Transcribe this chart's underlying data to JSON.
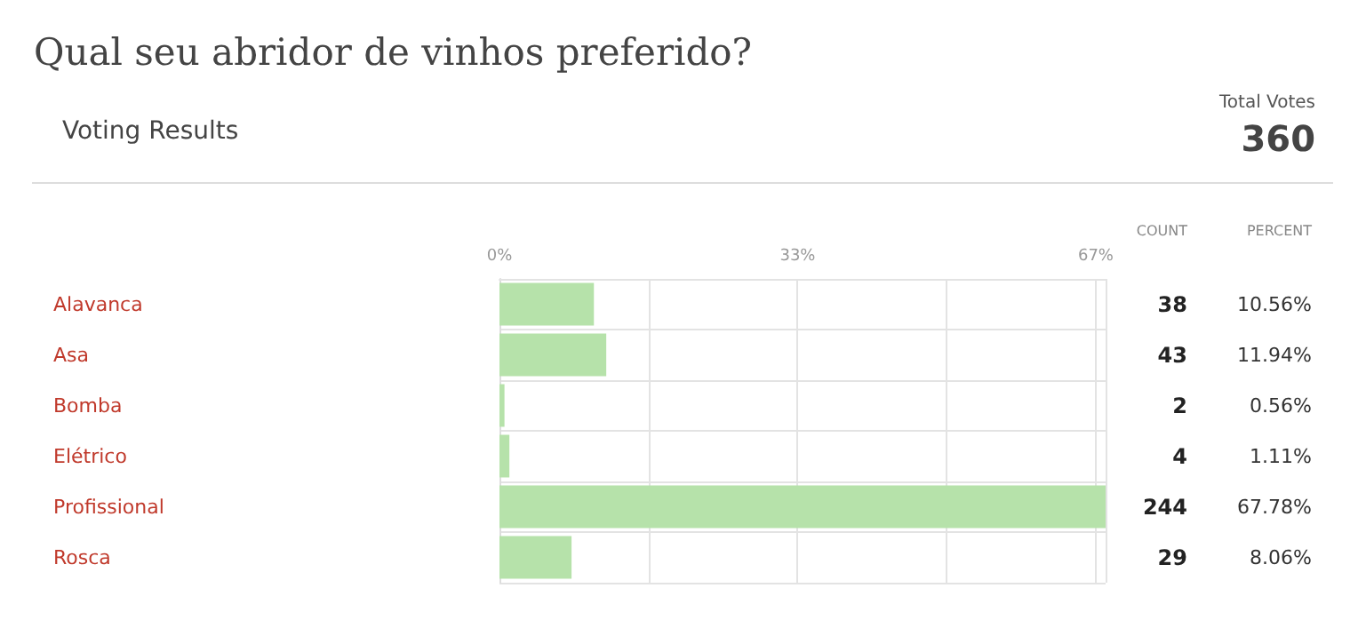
{
  "chart_data": {
    "type": "bar",
    "orientation": "horizontal",
    "title": "Qual seu abridor de vinhos preferido?",
    "subtitle": "Voting Results",
    "categories": [
      "Alavanca",
      "Asa",
      "Bomba",
      "Elétrico",
      "Profissional",
      "Rosca"
    ],
    "values": [
      10.56,
      11.94,
      0.56,
      1.11,
      67.78,
      8.06
    ],
    "color": "#b6e2aa",
    "value_labels": [
      "10.56%",
      "11.94%",
      "0.56%",
      "1.11%",
      "67.78%",
      "8.06%"
    ],
    "x2lim": [
      0,
      67.78
    ],
    "x2ticks": [
      {
        "value": 0,
        "label": "0%"
      },
      {
        "value": 16.67,
        "label": null
      },
      {
        "value": 33.33,
        "label": "33%"
      },
      {
        "value": 50,
        "label": null
      },
      {
        "value": 66.67,
        "label": "67%"
      }
    ],
    "grid": true,
    "annotations": [
      "Total Votes",
      "360",
      "COUNT",
      "PERCENT",
      "38",
      "43",
      "2",
      "4",
      "244",
      "29"
    ]
  }
}
